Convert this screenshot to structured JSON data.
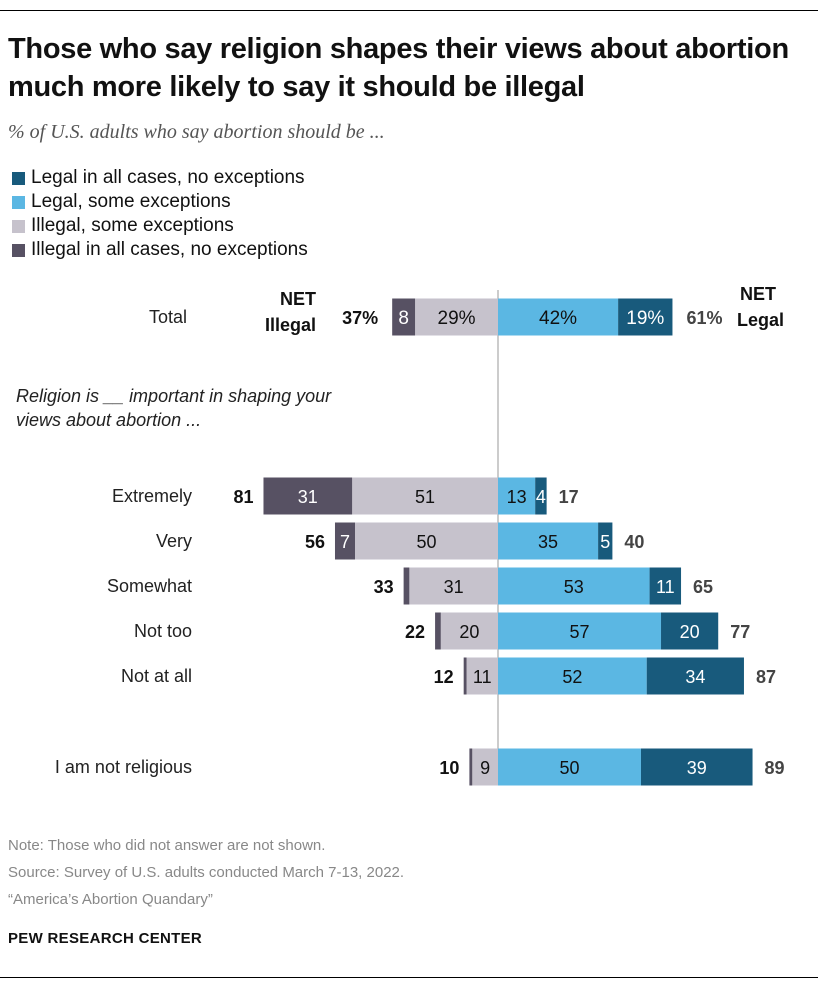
{
  "title": "Those who say religion shapes their views about abortion much more likely to say it should be illegal",
  "subtitle": "% of U.S. adults who say abortion should be ...",
  "religion_label": "Religion is __ important in shaping your views about abortion ...",
  "net_illegal_label": [
    "NET",
    "Illegal"
  ],
  "net_legal_label": [
    "NET",
    "Legal"
  ],
  "notes": [
    "Note: Those who did not answer are not shown.",
    "Source: Survey of U.S. adults conducted March 7-13, 2022.",
    "“America’s Abortion Quandary”"
  ],
  "brand": "PEW RESEARCH CENTER",
  "colors": {
    "legal_all": "#185a7c",
    "legal_some": "#5bb7e3",
    "illegal_some": "#c6c2cc",
    "illegal_all": "#575163"
  },
  "chart_data": {
    "type": "diverging-bar",
    "title": "Those who say religion shapes their views about abortion much more likely to say it should be illegal",
    "series": [
      {
        "key": "legal_all",
        "name": "Legal in all cases, no exceptions"
      },
      {
        "key": "legal_some",
        "name": "Legal, some exceptions"
      },
      {
        "key": "illegal_some",
        "name": "Illegal, some exceptions"
      },
      {
        "key": "illegal_all",
        "name": "Illegal in all cases, no exceptions"
      }
    ],
    "rows": [
      {
        "category": "Total",
        "illegal_all": 8,
        "illegal_some": 29,
        "legal_some": 42,
        "legal_all": 19,
        "net_illegal": 37,
        "net_legal": 61,
        "pct": true,
        "labels": [
          "8",
          "29%",
          "42%",
          "19%"
        ]
      },
      {
        "category": "Extremely",
        "illegal_all": 31,
        "illegal_some": 51,
        "legal_some": 13,
        "legal_all": 4,
        "net_illegal": 81,
        "net_legal": 17,
        "labels": [
          "31",
          "51",
          "13",
          "4"
        ]
      },
      {
        "category": "Very",
        "illegal_all": 7,
        "illegal_some": 50,
        "legal_some": 35,
        "legal_all": 5,
        "net_illegal": 56,
        "net_legal": 40,
        "labels": [
          "7",
          "50",
          "35",
          "5"
        ]
      },
      {
        "category": "Somewhat",
        "illegal_all": 2,
        "illegal_some": 31,
        "legal_some": 53,
        "legal_all": 11,
        "net_illegal": 33,
        "net_legal": 65,
        "labels": [
          "",
          "31",
          "53",
          "11"
        ]
      },
      {
        "category": "Not too",
        "illegal_all": 2,
        "illegal_some": 20,
        "legal_some": 57,
        "legal_all": 20,
        "net_illegal": 22,
        "net_legal": 77,
        "labels": [
          "",
          "20",
          "57",
          "20"
        ]
      },
      {
        "category": "Not at all",
        "illegal_all": 1,
        "illegal_some": 11,
        "legal_some": 52,
        "legal_all": 34,
        "net_illegal": 12,
        "net_legal": 87,
        "labels": [
          "",
          "11",
          "52",
          "34"
        ]
      },
      {
        "category": "I am not religious",
        "illegal_all": 1,
        "illegal_some": 9,
        "legal_some": 50,
        "legal_all": 39,
        "net_illegal": 10,
        "net_legal": 89,
        "labels": [
          "",
          "9",
          "50",
          "39"
        ]
      }
    ]
  }
}
